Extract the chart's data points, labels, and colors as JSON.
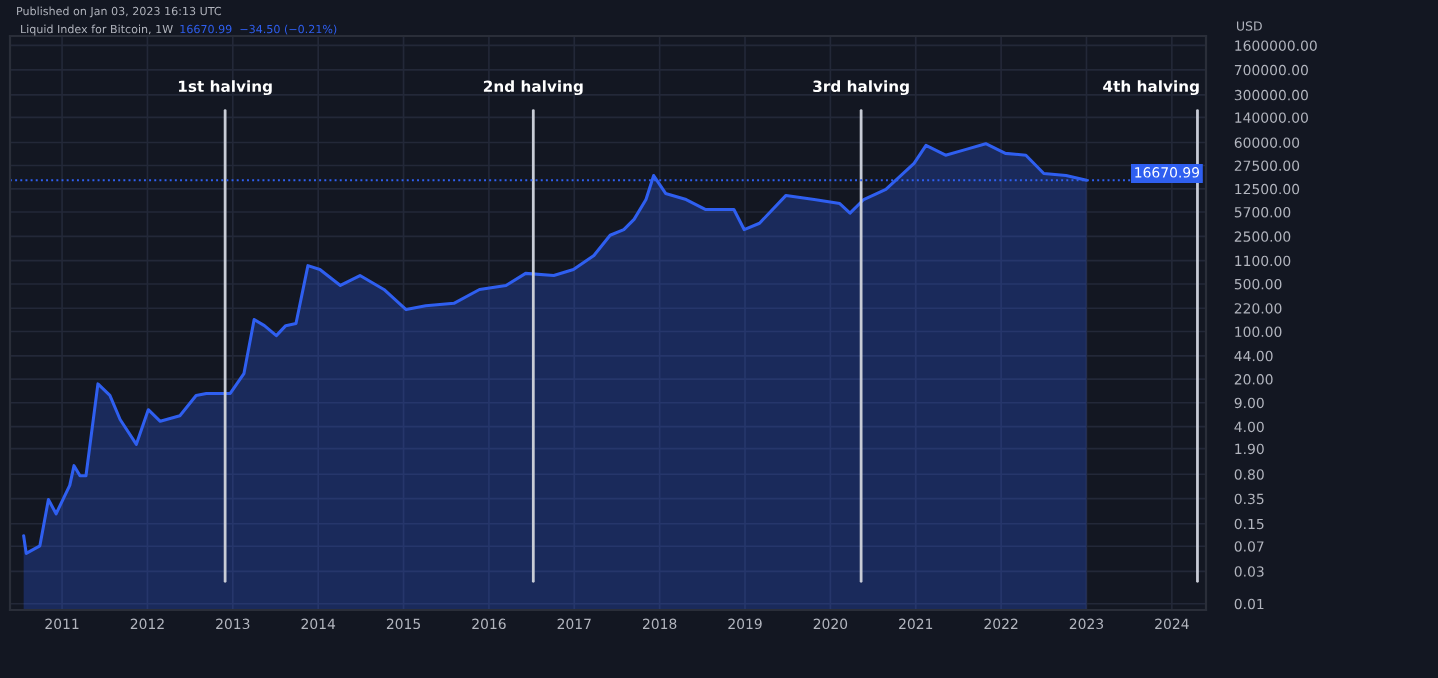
{
  "chart_data": {
    "type": "area",
    "title": "Liquid Index for Bitcoin, 1W",
    "subtitle": "16670.99  −34.50 (−0.21%)",
    "ylabel": "USD",
    "annotations": [
      "Published on Jan 03, 2023 16:13 UTC"
    ],
    "log": "y",
    "grid": true,
    "series": [
      {
        "color": "#2f5ff0",
        "x": [
          2010.55,
          2010.58,
          2010.74,
          2010.84,
          2010.93,
          2011.09,
          2011.14,
          2011.21,
          2011.28,
          2011.42,
          2011.56,
          2011.68,
          2011.87,
          2012.01,
          2012.15,
          2012.38,
          2012.57,
          2012.69,
          2012.97,
          2013.13,
          2013.25,
          2013.37,
          2013.51,
          2013.62,
          2013.74,
          2013.88,
          2014.02,
          2014.26,
          2014.49,
          2014.77,
          2015.03,
          2015.26,
          2015.59,
          2015.89,
          2016.2,
          2016.43,
          2016.76,
          2016.99,
          2017.23,
          2017.42,
          2017.58,
          2017.7,
          2017.84,
          2017.93,
          2018.07,
          2018.31,
          2018.54,
          2018.7,
          2018.87,
          2018.99,
          2019.17,
          2019.48,
          2019.81,
          2020.11,
          2020.23,
          2020.39,
          2020.65,
          2020.98,
          2021.12,
          2021.35,
          2021.59,
          2021.82,
          2022.05,
          2022.29,
          2022.5,
          2022.76,
          2023.0
        ],
        "values": [
          0.1,
          0.055,
          0.071,
          0.34,
          0.21,
          0.55,
          1.07,
          0.76,
          0.76,
          17,
          11.5,
          5.1,
          2.2,
          7.1,
          4.8,
          5.8,
          11.5,
          12.3,
          12.3,
          24,
          150,
          122,
          87,
          122,
          131,
          930,
          815,
          475,
          665,
          415,
          210,
          240,
          260,
          415,
          475,
          715,
          665,
          815,
          1310,
          2600,
          3150,
          4450,
          8700,
          19600,
          10700,
          8700,
          6200,
          6200,
          6200,
          3150,
          3900,
          10000,
          8700,
          7600,
          5500,
          8700,
          12300,
          29500,
          54500,
          39000,
          47500,
          57500,
          41500,
          39000,
          21000,
          19600,
          16670.99
        ]
      }
    ],
    "xlim": [
      2010.39,
      2024.4
    ],
    "xticks": [
      2011,
      2012,
      2013,
      2014,
      2015,
      2016,
      2017,
      2018,
      2019,
      2020,
      2021,
      2022,
      2023,
      2024
    ],
    "ylim": [
      0.0081,
      2200000
    ],
    "yticks": [
      {
        "value": 0.01,
        "label": "0.01"
      },
      {
        "value": 0.03,
        "label": "0.03"
      },
      {
        "value": 0.07,
        "label": "0.07"
      },
      {
        "value": 0.15,
        "label": "0.15"
      },
      {
        "value": 0.35,
        "label": "0.35"
      },
      {
        "value": 0.8,
        "label": "0.80"
      },
      {
        "value": 1.9,
        "label": "1.90"
      },
      {
        "value": 4,
        "label": "4.00"
      },
      {
        "value": 9,
        "label": "9.00"
      },
      {
        "value": 20,
        "label": "20.00"
      },
      {
        "value": 44,
        "label": "44.00"
      },
      {
        "value": 100,
        "label": "100.00"
      },
      {
        "value": 220,
        "label": "220.00"
      },
      {
        "value": 500,
        "label": "500.00"
      },
      {
        "value": 1100,
        "label": "1100.00"
      },
      {
        "value": 2500,
        "label": "2500.00"
      },
      {
        "value": 5700,
        "label": "5700.00"
      },
      {
        "value": 12500,
        "label": "12500.00"
      },
      {
        "value": 27500,
        "label": "27500.00"
      },
      {
        "value": 60000,
        "label": "60000.00"
      },
      {
        "value": 140000,
        "label": "140000.00"
      },
      {
        "value": 300000,
        "label": "300000.00"
      },
      {
        "value": 700000,
        "label": "700000.00"
      },
      {
        "value": 1600000,
        "label": "1600000.00"
      }
    ],
    "ref_lines": [
      {
        "axis": "x",
        "value": 2012.91,
        "label": "1st halving",
        "color": "#c8ccd6"
      },
      {
        "axis": "x",
        "value": 2016.52,
        "label": "2nd halving",
        "color": "#c8ccd6"
      },
      {
        "axis": "x",
        "value": 2020.36,
        "label": "3rd halving",
        "color": "#c8ccd6"
      },
      {
        "axis": "x",
        "value": 2024.3,
        "label": "4th halving",
        "color": "#c8ccd6"
      },
      {
        "axis": "y",
        "value": 16670.99,
        "label": "16670.99",
        "color": "#2f5ff0",
        "line_style": "dotted"
      }
    ]
  }
}
